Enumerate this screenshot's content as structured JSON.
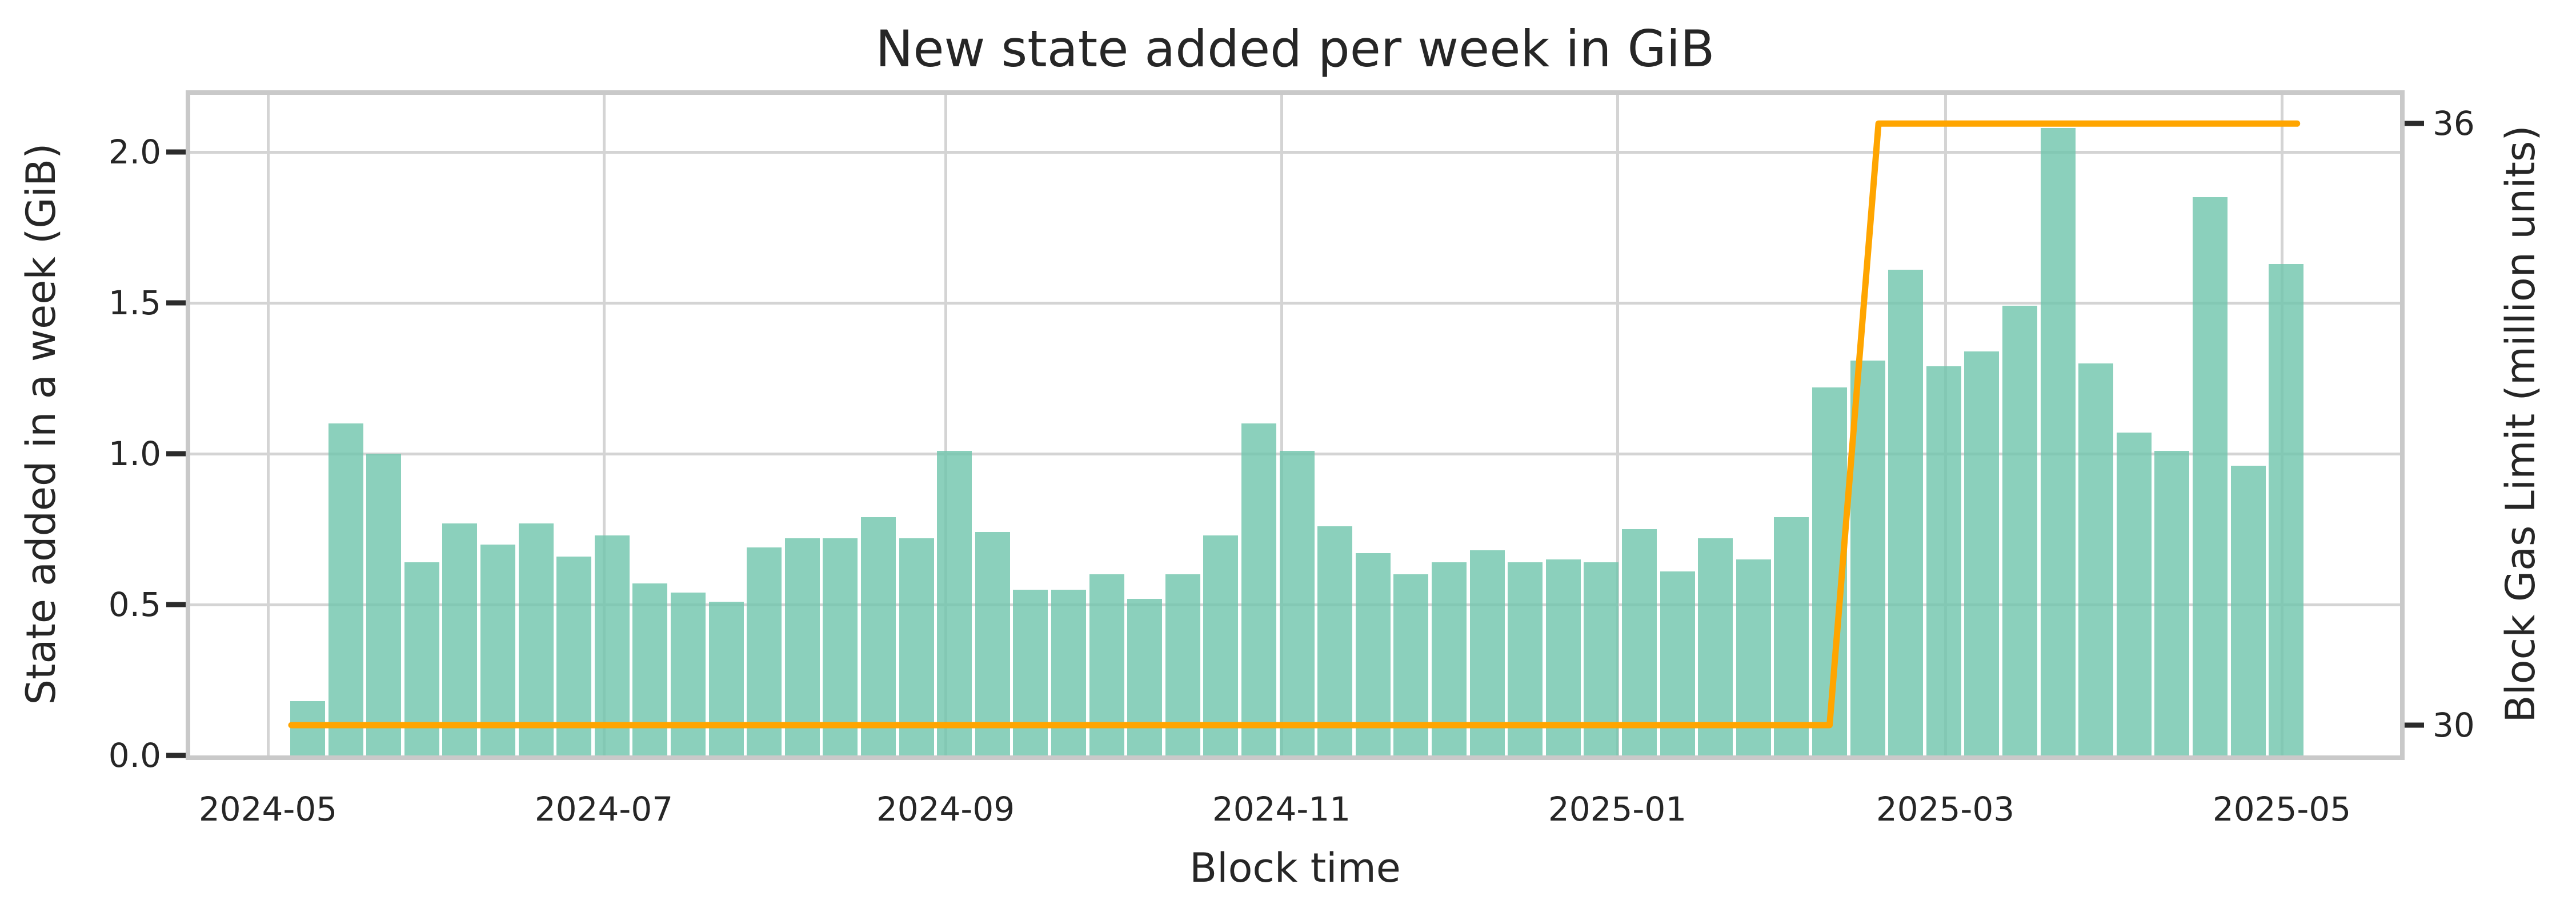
{
  "figure": {
    "title": "New state added per week in GiB",
    "xlabel": "Block time",
    "ylabel_left": "State added in a week (GiB)",
    "ylabel_right": "Block Gas Limit (million units)"
  },
  "chart_data": {
    "type": "bar",
    "title": "New state added per week in GiB",
    "xlabel": "Block time",
    "ylabel": "State added in a week (GiB)",
    "ylabel_right": "Block Gas Limit (million units)",
    "grid": true,
    "legend_position": "none",
    "categories": [
      "2024-05-06",
      "2024-05-13",
      "2024-05-20",
      "2024-05-27",
      "2024-06-03",
      "2024-06-10",
      "2024-06-17",
      "2024-06-24",
      "2024-07-01",
      "2024-07-08",
      "2024-07-15",
      "2024-07-22",
      "2024-07-29",
      "2024-08-05",
      "2024-08-12",
      "2024-08-19",
      "2024-08-26",
      "2024-09-02",
      "2024-09-09",
      "2024-09-16",
      "2024-09-23",
      "2024-09-30",
      "2024-10-07",
      "2024-10-14",
      "2024-10-21",
      "2024-10-28",
      "2024-11-04",
      "2024-11-11",
      "2024-11-18",
      "2024-11-25",
      "2024-12-02",
      "2024-12-09",
      "2024-12-16",
      "2024-12-23",
      "2024-12-30",
      "2025-01-06",
      "2025-01-13",
      "2025-01-20",
      "2025-01-27",
      "2025-02-03",
      "2025-02-10",
      "2025-02-17",
      "2025-02-24",
      "2025-03-03",
      "2025-03-10",
      "2025-03-17",
      "2025-03-24",
      "2025-03-31",
      "2025-04-07",
      "2025-04-14",
      "2025-04-21",
      "2025-04-28",
      "2025-05-05"
    ],
    "series": [
      {
        "name": "State added in a week (GiB)",
        "type": "bar",
        "axis": "left",
        "color": "#6ec4ab",
        "values": [
          0.18,
          1.1,
          1.0,
          0.64,
          0.77,
          0.7,
          0.77,
          0.66,
          0.73,
          0.57,
          0.54,
          0.51,
          0.69,
          0.72,
          0.72,
          0.79,
          0.72,
          1.01,
          0.74,
          0.55,
          0.55,
          0.6,
          0.52,
          0.6,
          0.73,
          1.1,
          1.01,
          0.76,
          0.67,
          0.6,
          0.64,
          0.68,
          0.64,
          0.65,
          0.64,
          0.75,
          0.61,
          0.72,
          0.65,
          0.79,
          1.22,
          1.31,
          1.61,
          1.29,
          1.34,
          1.49,
          2.08,
          1.3,
          1.07,
          1.01,
          1.85,
          0.96,
          1.63
        ]
      },
      {
        "name": "Block Gas Limit (million units)",
        "type": "line",
        "axis": "right",
        "color": "#ffa500",
        "points": [
          [
            "2024-05-03",
            30
          ],
          [
            "2025-02-10",
            30
          ],
          [
            "2025-02-19",
            36
          ],
          [
            "2025-05-07",
            36
          ]
        ]
      }
    ],
    "left_axis": {
      "tick_labels": [
        "0.0",
        "0.5",
        "1.0",
        "1.5",
        "2.0"
      ],
      "tick_values": [
        0,
        0.5,
        1.0,
        1.5,
        2.0
      ],
      "range": [
        0,
        2.19
      ]
    },
    "right_axis": {
      "tick_labels": [
        "30",
        "36"
      ],
      "tick_values": [
        30,
        36
      ],
      "range_note": "30 aligns near 0.10 GiB, 36 aligns near 2.09 GiB on left axis"
    },
    "x_axis": {
      "tick_labels": [
        "2024-05",
        "2024-07",
        "2024-09",
        "2024-11",
        "2025-01",
        "2025-03",
        "2025-05"
      ]
    },
    "colors": {
      "bar": "#6ec4ab",
      "line": "#ffa500",
      "grid": "#d4d4d4",
      "spine": "#c9c9c9",
      "text": "#262626",
      "background": "#ffffff"
    }
  }
}
